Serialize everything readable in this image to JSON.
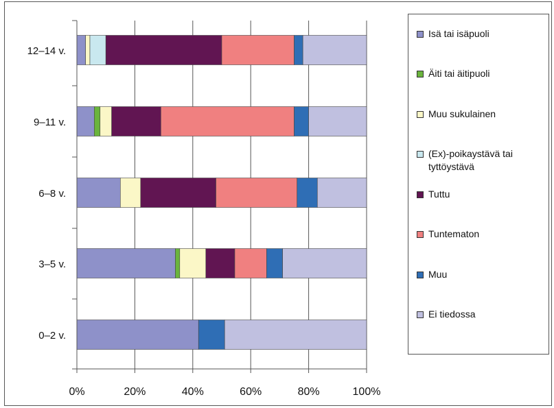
{
  "chart_data": {
    "type": "bar",
    "orientation": "horizontal",
    "stacked": true,
    "percent": true,
    "categories": [
      "12–14 v.",
      "9–11 v.",
      "6–8 v.",
      "3–5 v.",
      "0–2 v."
    ],
    "xticks": [
      "0%",
      "20%",
      "40%",
      "60%",
      "80%",
      "100%"
    ],
    "xlim": [
      0,
      100
    ],
    "grid": "vertical",
    "legend_position": "right",
    "series": [
      {
        "name": "Isä tai isäpuoli",
        "color": "#8e91c9",
        "values": [
          3,
          6,
          15,
          34,
          42
        ]
      },
      {
        "name": "Äiti tai äitipuoli",
        "color": "#6ab43d",
        "values": [
          0,
          2,
          0,
          1.5,
          0
        ]
      },
      {
        "name": "Muu sukulainen",
        "color": "#fbf7c7",
        "values": [
          1.5,
          4,
          7,
          9,
          0
        ]
      },
      {
        "name": "(Ex)-poikaystävä tai tyttöystävä",
        "color": "#c9e8ef",
        "values": [
          5.5,
          0,
          0,
          0,
          0
        ]
      },
      {
        "name": "Tuttu",
        "color": "#611552",
        "values": [
          40,
          17,
          26,
          10,
          0
        ]
      },
      {
        "name": "Tuntematon",
        "color": "#f08080",
        "values": [
          25,
          46,
          28,
          11,
          0
        ]
      },
      {
        "name": "Muu",
        "color": "#2f6eb5",
        "values": [
          3,
          5,
          7,
          5.5,
          9
        ]
      },
      {
        "name": "Ei tiedossa",
        "color": "#c0c0e0",
        "values": [
          22,
          20,
          17,
          29,
          49
        ]
      }
    ]
  }
}
